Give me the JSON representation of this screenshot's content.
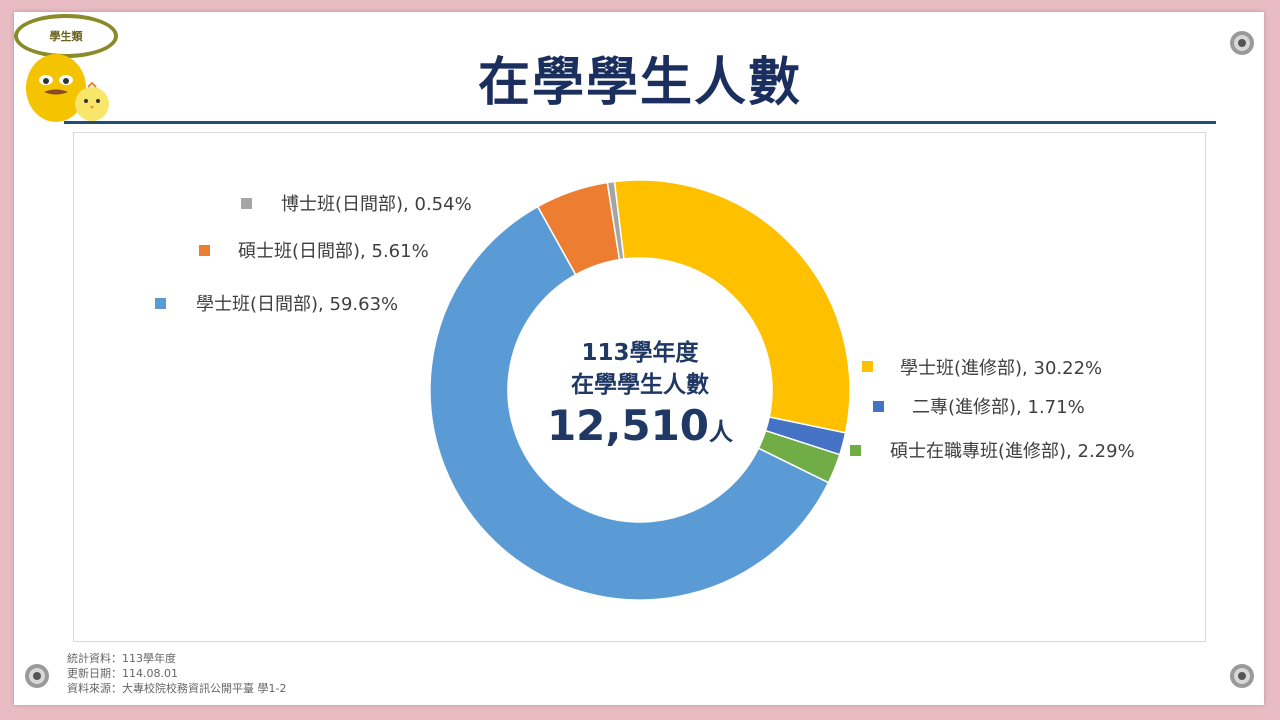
{
  "badge": "學生類",
  "title": "在學學生人數",
  "chart_data": {
    "type": "pie",
    "variant": "donut",
    "center_lines": [
      "113學年度",
      "在學學生人數"
    ],
    "center_value": "12,510",
    "center_unit": "人",
    "series": [
      {
        "name": "學士班(進修部)",
        "value": 30.22,
        "label": "30.22%",
        "color": "#ffc000"
      },
      {
        "name": "二專(進修部)",
        "value": 1.71,
        "label": "1.71%",
        "color": "#4472c4"
      },
      {
        "name": "碩士在職專班(進修部)",
        "value": 2.29,
        "label": "2.29%",
        "color": "#70ad47"
      },
      {
        "name": "學士班(日間部)",
        "value": 59.63,
        "label": "59.63%",
        "color": "#5b9bd5"
      },
      {
        "name": "碩士班(日間部)",
        "value": 5.61,
        "label": "5.61%",
        "color": "#ed7d31"
      },
      {
        "name": "博士班(日間部)",
        "value": 0.54,
        "label": "0.54%",
        "color": "#a5a5a5"
      }
    ]
  },
  "footer": {
    "line1": "統計資料：113學年度",
    "line2": "更新日期：114.08.01",
    "line3": "資料來源：大專校院校務資訊公開平臺  學1-2"
  }
}
